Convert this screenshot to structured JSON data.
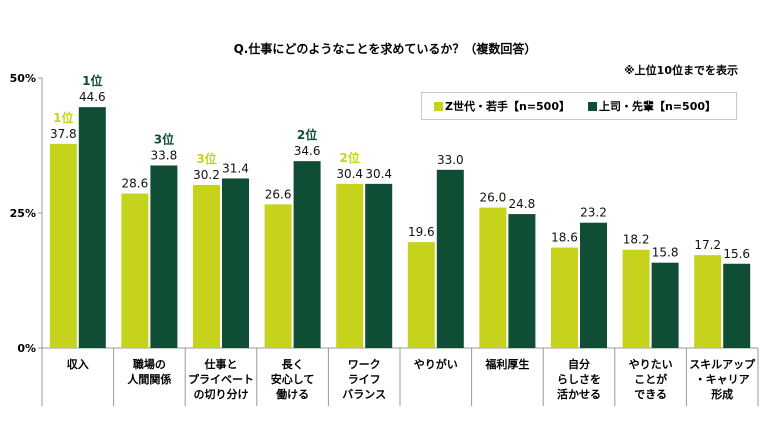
{
  "chart_data": {
    "type": "bar",
    "title": "Q.仕事にどのようなことを求めているか？（複数回答）",
    "note": "※上位10位までを表示",
    "categories": [
      [
        "収入"
      ],
      [
        "職場の",
        "人間関係"
      ],
      [
        "仕事と",
        "プライベート",
        "の切り分け"
      ],
      [
        "長く",
        "安心して",
        "働ける"
      ],
      [
        "ワーク",
        "ライフ",
        "バランス"
      ],
      [
        "やりがい"
      ],
      [
        "福利厚生"
      ],
      [
        "自分",
        "らしさを",
        "活かせる"
      ],
      [
        "やりたい",
        "ことが",
        "できる"
      ],
      [
        "スキルアップ",
        "・キャリア",
        "形成"
      ]
    ],
    "series": [
      {
        "name": "Z世代・若手【n=500】",
        "color": "#c5d31c",
        "values": [
          37.8,
          28.6,
          30.2,
          26.6,
          30.4,
          19.6,
          26.0,
          18.6,
          18.2,
          17.2
        ],
        "labels": [
          "37.8",
          "28.6",
          "30.2",
          "26.6",
          "30.4",
          "19.6",
          "26.0",
          "18.6",
          "18.2",
          "17.2"
        ],
        "ranks": [
          "1位",
          "",
          "3位",
          "",
          "2位",
          "",
          "",
          "",
          "",
          ""
        ]
      },
      {
        "name": "上司・先輩【n=500】",
        "color": "#0f4d35",
        "values": [
          44.6,
          33.8,
          31.4,
          34.6,
          30.4,
          33.0,
          24.8,
          23.2,
          15.8,
          15.6
        ],
        "labels": [
          "44.6",
          "33.8",
          "31.4",
          "34.6",
          "30.4",
          "33.0",
          "24.8",
          "23.2",
          "15.8",
          "15.6"
        ],
        "ranks": [
          "1位",
          "3位",
          "",
          "2位",
          "",
          "",
          "",
          "",
          "",
          ""
        ]
      }
    ],
    "yticks": [
      "0%",
      "25%",
      "50%"
    ],
    "ytick_values": [
      0,
      25,
      50
    ],
    "ylim": [
      0,
      50
    ],
    "grid": false,
    "legend_position": "top-right"
  }
}
